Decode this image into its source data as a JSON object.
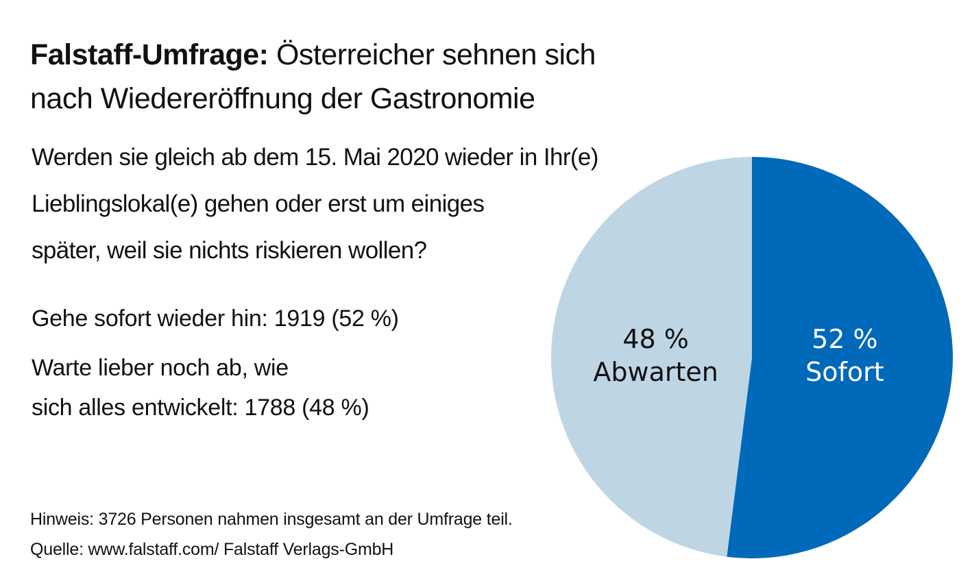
{
  "header": {
    "title_bold": "Falstaff-Umfrage:",
    "title_rest_line1": " Österreicher sehnen sich",
    "title_line2": "nach Wiedereröffnung der Gastronomie"
  },
  "question": {
    "lines": [
      "Werden sie gleich ab dem 15. Mai 2020 wieder in Ihr(e)",
      "Lieblingslokal(e) gehen oder erst um einiges",
      "später, weil sie nichts riskieren wollen?"
    ]
  },
  "answers": {
    "answer1": "Gehe sofort wieder hin: 1919 (52 %)",
    "answer2_line1": "Warte lieber noch ab, wie",
    "answer2_line2": "sich alles entwickelt: 1788 (48 %)"
  },
  "footer": {
    "note": "Hinweis: 3726 Personen nahmen insgesamt an der Umfrage teil.",
    "source": "Quelle: www.falstaff.com/ Falstaff Verlags-GmbH"
  },
  "chart_data": {
    "type": "pie",
    "title": "Falstaff-Umfrage: Österreicher sehnen sich nach Wiedereröffnung der Gastronomie",
    "start": "top",
    "direction": "clockwise",
    "slices": [
      {
        "label": "Sofort",
        "percent_label": "52 %",
        "value": 52,
        "count": 1919,
        "color": "#0069b9",
        "text_color": "#ffffff"
      },
      {
        "label": "Abwarten",
        "percent_label": "48 %",
        "value": 48,
        "count": 1788,
        "color": "#bed6e4",
        "text_color": "#111111"
      }
    ],
    "total": 3726
  }
}
